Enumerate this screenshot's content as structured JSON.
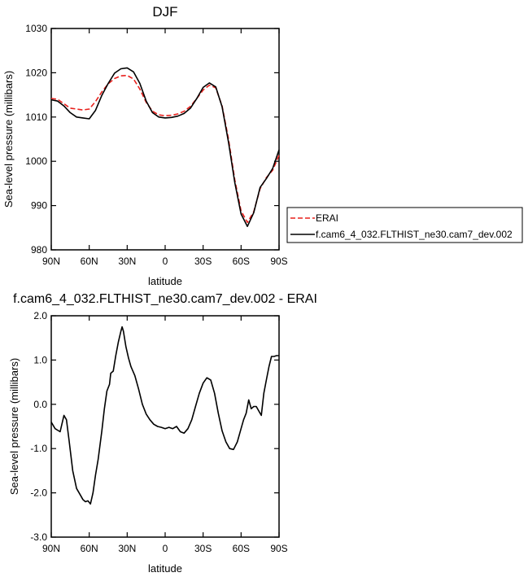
{
  "chart_data": [
    {
      "type": "line",
      "title": "DJF",
      "xlabel": "latitude",
      "ylabel": "Sea-level pressure (millibars)",
      "x_range": [
        90,
        -90
      ],
      "ylim": [
        980,
        1030
      ],
      "x_ticks": [
        {
          "value": 90,
          "label": "90N"
        },
        {
          "value": 60,
          "label": "60N"
        },
        {
          "value": 30,
          "label": "30N"
        },
        {
          "value": 0,
          "label": "0"
        },
        {
          "value": -30,
          "label": "30S"
        },
        {
          "value": -60,
          "label": "60S"
        },
        {
          "value": -90,
          "label": "90S"
        }
      ],
      "y_ticks": [
        {
          "value": 980,
          "label": "980"
        },
        {
          "value": 990,
          "label": "990"
        },
        {
          "value": 1000,
          "label": "1000"
        },
        {
          "value": 1010,
          "label": "1010"
        },
        {
          "value": 1020,
          "label": "1020"
        },
        {
          "value": 1030,
          "label": "1030"
        }
      ],
      "legend_position": "right",
      "grid": false,
      "series": [
        {
          "name": "ERAI",
          "color": "#e8201c",
          "dash": true,
          "x": [
            90,
            85,
            80,
            75,
            70,
            65,
            60,
            55,
            50,
            45,
            40,
            35,
            30,
            25,
            20,
            15,
            10,
            5,
            0,
            -5,
            -10,
            -15,
            -20,
            -25,
            -30,
            -35,
            -40,
            -45,
            -50,
            -55,
            -60,
            -65,
            -70,
            -75,
            -80,
            -85,
            -90
          ],
          "y": [
            1014.2,
            1014,
            1013,
            1012,
            1011.8,
            1011.6,
            1011.8,
            1013.5,
            1015.7,
            1017.5,
            1018.7,
            1019.3,
            1019.4,
            1018.6,
            1016.3,
            1013.3,
            1011.3,
            1010.5,
            1010.3,
            1010.4,
            1010.7,
            1011.3,
            1012.4,
            1014.2,
            1016.1,
            1017.2,
            1016.6,
            1012.5,
            1005.1,
            995.8,
            988.8,
            986.2,
            988.6,
            993.8,
            996.3,
            998,
            1001.4
          ]
        },
        {
          "name": "f.cam6_4_032.FLTHIST_ne30.cam7_dev.002",
          "color": "#000000",
          "dash": false,
          "x": [
            90,
            85,
            80,
            75,
            70,
            65,
            60,
            55,
            50,
            45,
            40,
            35,
            30,
            25,
            20,
            15,
            10,
            5,
            0,
            -5,
            -10,
            -15,
            -20,
            -25,
            -30,
            -35,
            -40,
            -45,
            -50,
            -55,
            -60,
            -65,
            -70,
            -75,
            -80,
            -85,
            -90
          ],
          "y": [
            1013.9,
            1013.6,
            1012.5,
            1011,
            1010,
            1009.8,
            1009.6,
            1011.5,
            1014.9,
            1017.6,
            1019.9,
            1020.9,
            1021.1,
            1020.2,
            1017.6,
            1013.6,
            1011,
            1010,
            1009.8,
            1009.9,
            1010.2,
            1010.8,
            1012,
            1014.2,
            1016.7,
            1017.7,
            1016.8,
            1012.3,
            1004.4,
            995.2,
            988.1,
            985.3,
            988.4,
            994.1,
            996.1,
            998.4,
            1002.6
          ]
        }
      ]
    },
    {
      "type": "line",
      "title": "f.cam6_4_032.FLTHIST_ne30.cam7_dev.002 - ERAI",
      "xlabel": "latitude",
      "ylabel": "Sea-level pressure (millibars)",
      "x_range": [
        90,
        -90
      ],
      "ylim": [
        -3.0,
        2.0
      ],
      "x_ticks": [
        {
          "value": 90,
          "label": "90N"
        },
        {
          "value": 60,
          "label": "60N"
        },
        {
          "value": 30,
          "label": "30N"
        },
        {
          "value": 0,
          "label": "0"
        },
        {
          "value": -30,
          "label": "30S"
        },
        {
          "value": -60,
          "label": "60S"
        },
        {
          "value": -90,
          "label": "90S"
        }
      ],
      "y_ticks": [
        {
          "value": -3.0,
          "label": "-3.0"
        },
        {
          "value": -2.0,
          "label": "-2.0"
        },
        {
          "value": -1.0,
          "label": "-1.0"
        },
        {
          "value": 0.0,
          "label": "0.0"
        },
        {
          "value": 1.0,
          "label": "1.0"
        },
        {
          "value": 2.0,
          "label": "2.0"
        }
      ],
      "grid": false,
      "series": [
        {
          "color": "#000000",
          "x": [
            90,
            87,
            83,
            80,
            78,
            76,
            73,
            70,
            67,
            65,
            63,
            61,
            59,
            57,
            55,
            53,
            50,
            48,
            46,
            44,
            43,
            41,
            39,
            37,
            35,
            34,
            33,
            31,
            29,
            27,
            24,
            21,
            18,
            15,
            12,
            9,
            6,
            3,
            0,
            -3,
            -6,
            -9,
            -12,
            -15,
            -18,
            -21,
            -24,
            -27,
            -30,
            -33,
            -36,
            -39,
            -42,
            -45,
            -48,
            -51,
            -54,
            -57,
            -60,
            -62,
            -64,
            -66,
            -68,
            -70,
            -72,
            -74,
            -76,
            -78,
            -80,
            -82,
            -84,
            -86,
            -88,
            -90
          ],
          "y": [
            -0.4,
            -0.55,
            -0.62,
            -0.25,
            -0.35,
            -0.8,
            -1.5,
            -1.9,
            -2.05,
            -2.15,
            -2.2,
            -2.18,
            -2.25,
            -2.0,
            -1.6,
            -1.25,
            -0.6,
            -0.1,
            0.3,
            0.45,
            0.7,
            0.75,
            1.1,
            1.4,
            1.65,
            1.75,
            1.65,
            1.3,
            1.05,
            0.85,
            0.65,
            0.35,
            0.0,
            -0.22,
            -0.35,
            -0.45,
            -0.5,
            -0.52,
            -0.55,
            -0.52,
            -0.55,
            -0.5,
            -0.62,
            -0.65,
            -0.55,
            -0.35,
            -0.05,
            0.25,
            0.48,
            0.6,
            0.55,
            0.25,
            -0.2,
            -0.6,
            -0.85,
            -1.0,
            -1.02,
            -0.85,
            -0.55,
            -0.35,
            -0.2,
            0.1,
            -0.1,
            -0.05,
            -0.05,
            -0.15,
            -0.25,
            0.25,
            0.55,
            0.85,
            1.08,
            1.08,
            1.1,
            1.1
          ]
        }
      ]
    }
  ]
}
